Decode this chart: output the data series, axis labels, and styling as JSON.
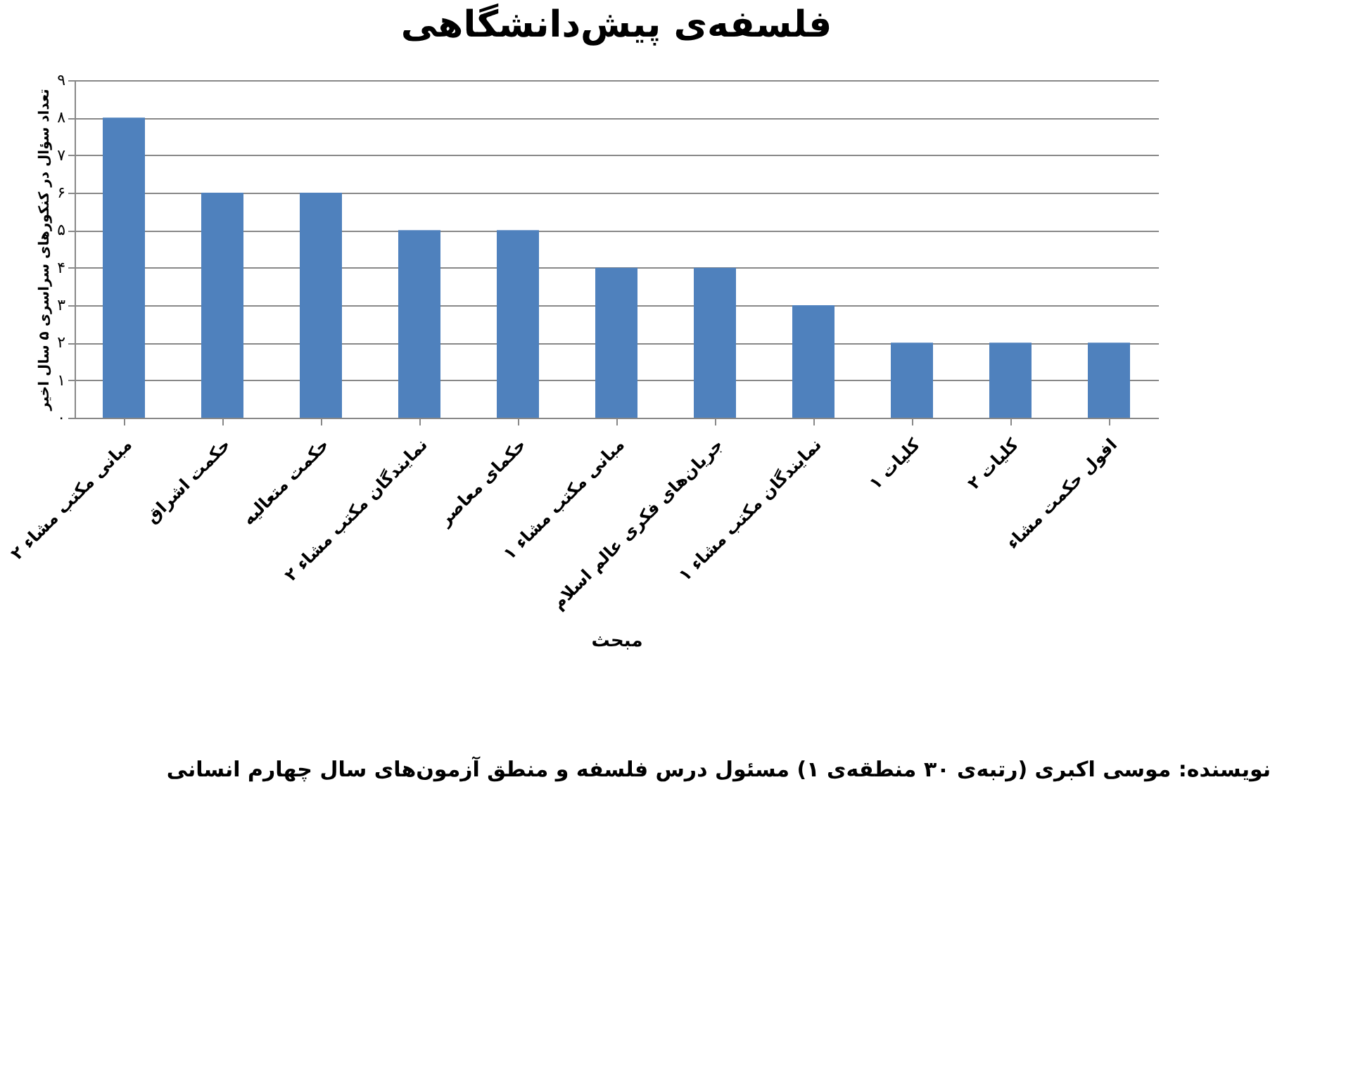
{
  "chart_data": {
    "type": "bar",
    "title": "فلسفه‌ی پیش‌دانشگاهی",
    "xlabel": "مبحث",
    "ylabel": "تعداد سؤال در کنکورهای سراسری ۵ سال اخیر",
    "categories": [
      "مبانی مکتب مشاء ۲",
      "حکمت اشراق",
      "حکمت متعالیه",
      "نمایندگان مکتب مشاء ۲",
      "حکمای معاصر",
      "مبانی مکتب مشاء ۱",
      "جریان‌های فکری عالم اسلام",
      "نمایندگان مکتب مشاء ۱",
      "کلیات ۱",
      "کلیات ۲",
      "افول حکمت مشاء"
    ],
    "values": [
      8,
      6,
      6,
      5,
      5,
      4,
      4,
      3,
      2,
      2,
      2
    ],
    "color": "#4f81bd",
    "ylim": [
      0,
      9
    ],
    "yticks": [
      {
        "value": 0,
        "label": "۰"
      },
      {
        "value": 1,
        "label": "۱"
      },
      {
        "value": 2,
        "label": "۲"
      },
      {
        "value": 3,
        "label": "۳"
      },
      {
        "value": 4,
        "label": "۴"
      },
      {
        "value": 5,
        "label": "۵"
      },
      {
        "value": 6,
        "label": "۶"
      },
      {
        "value": 7,
        "label": "۷"
      },
      {
        "value": 8,
        "label": "۸"
      },
      {
        "value": 9,
        "label": "۹"
      }
    ],
    "grid": "y",
    "annotations": [
      "نویسنده: موسی اکبری (رتبه‌ی ۳۰ منطقه‌ی ۱) مسئول درس فلسفه و منطق آزمون‌های سال چهارم انسانی"
    ]
  }
}
